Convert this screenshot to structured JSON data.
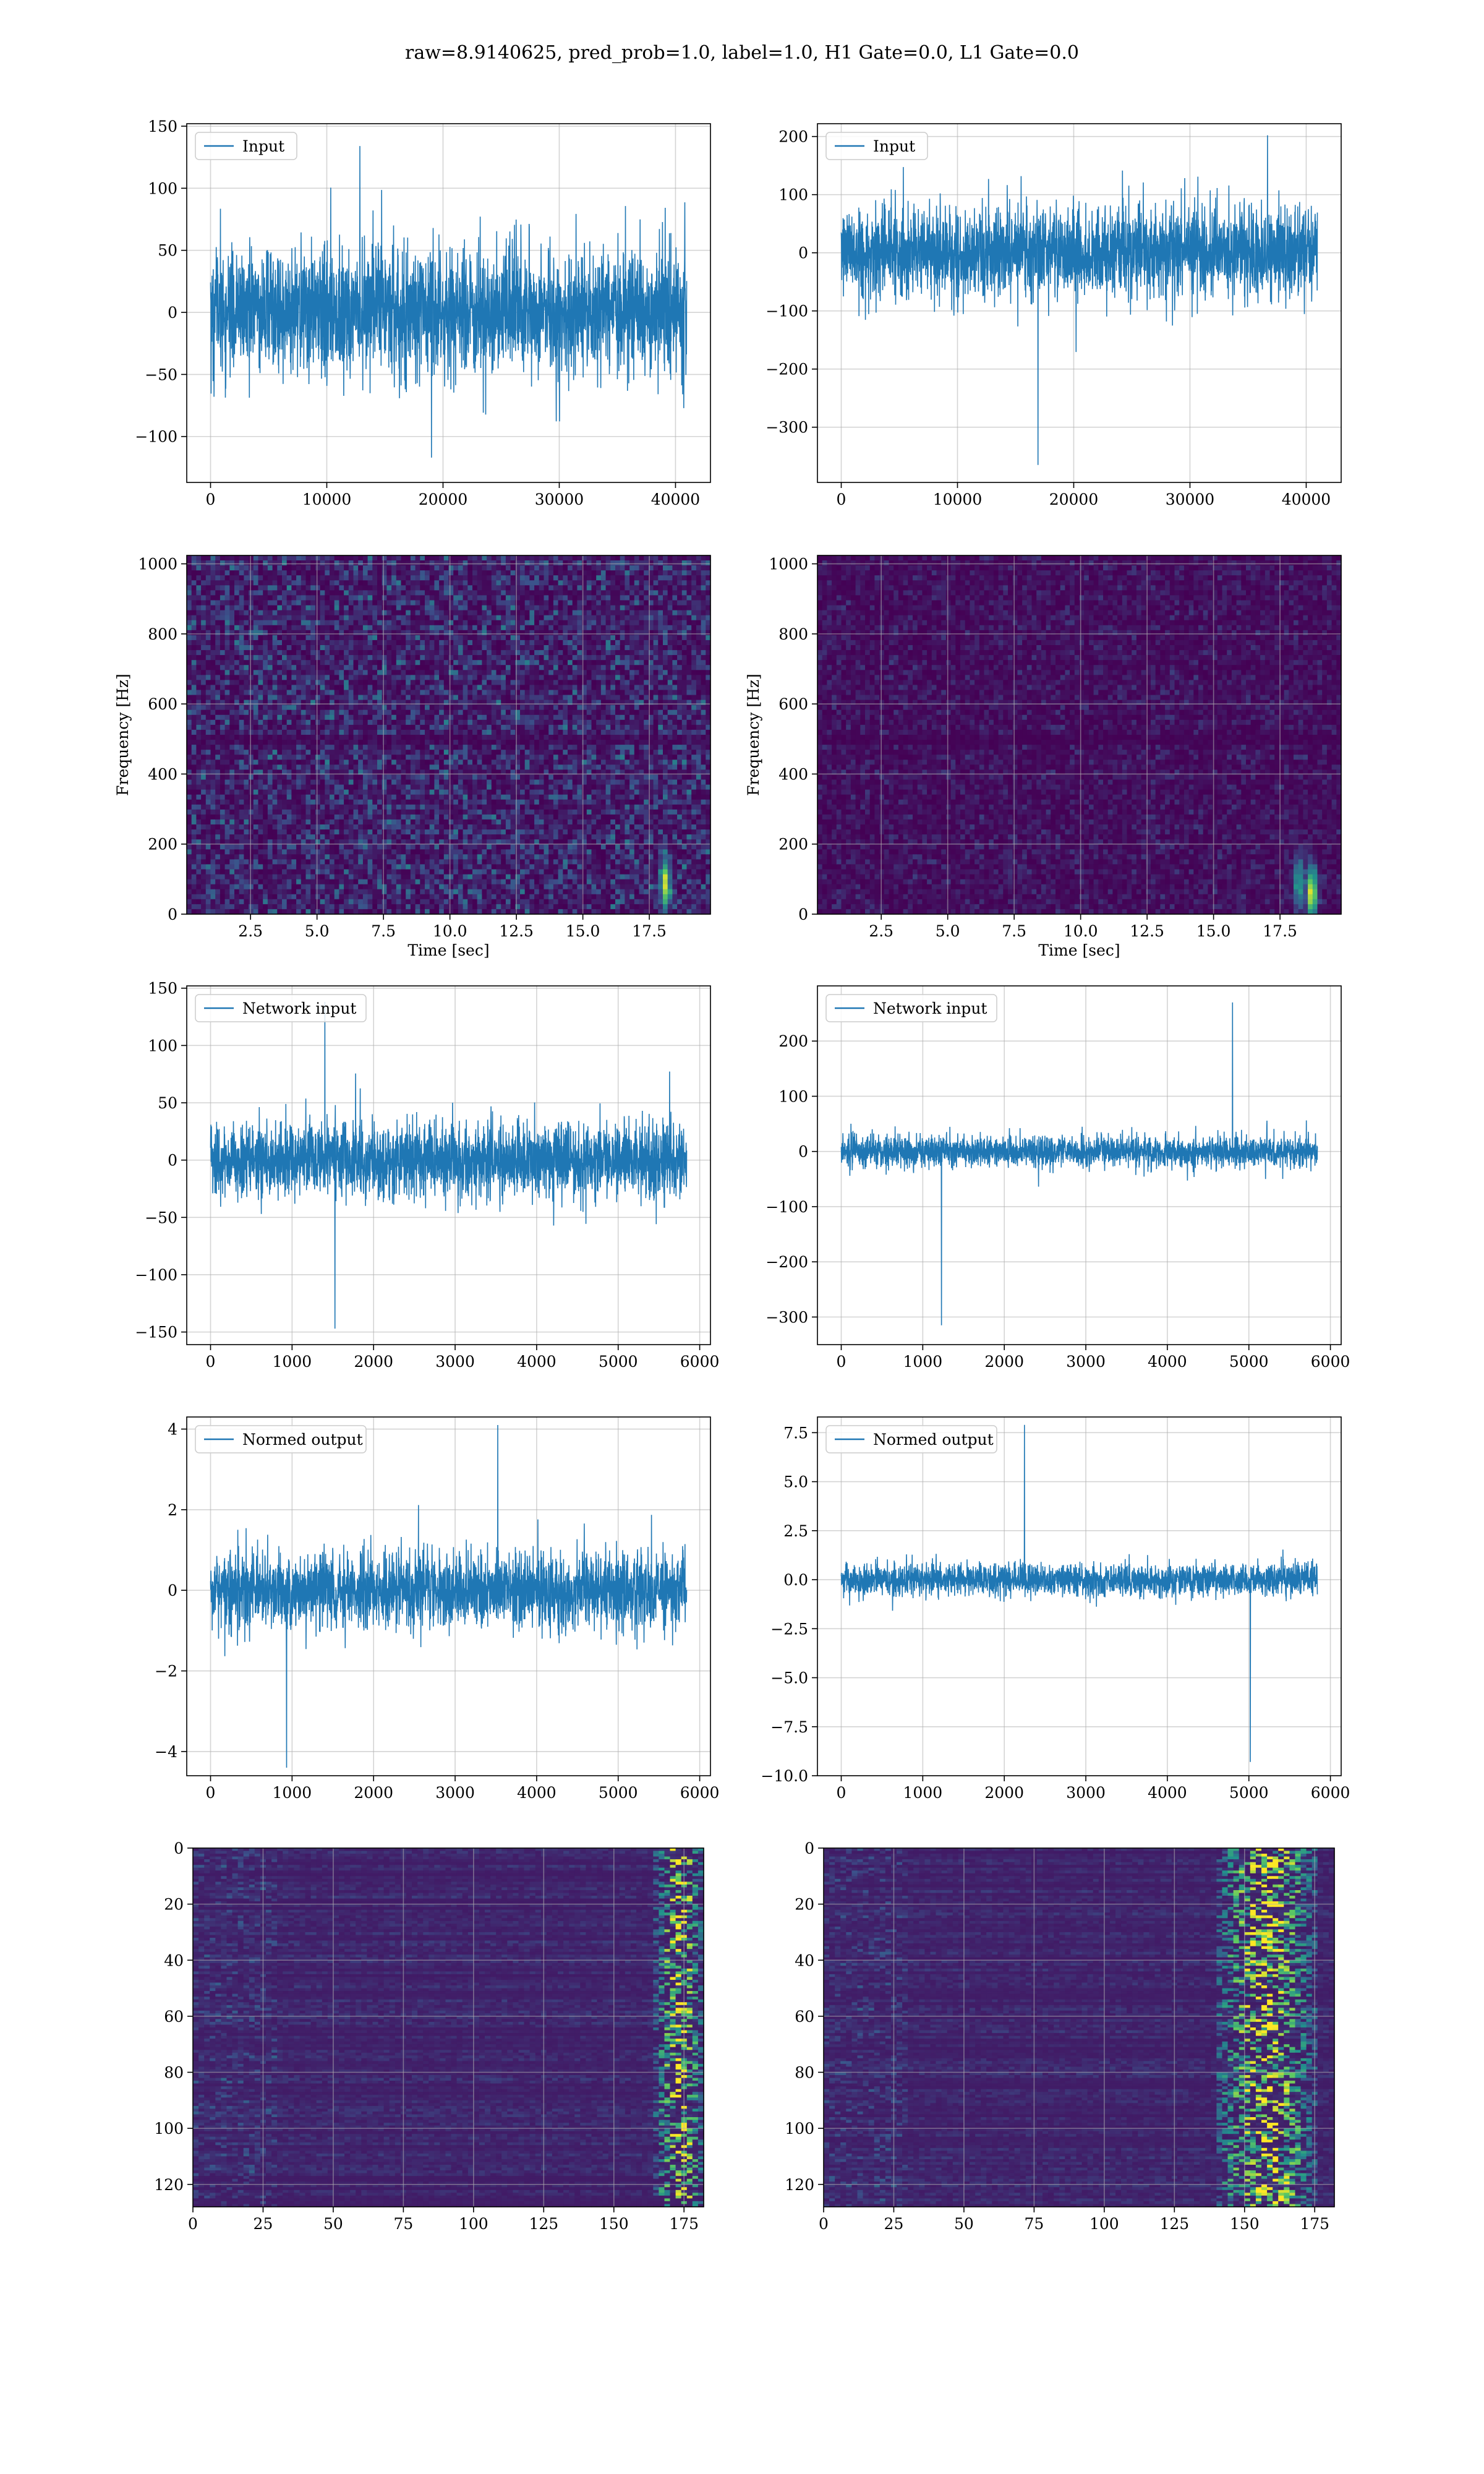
{
  "figure": {
    "title": "raw=8.9140625, pred_prob=1.0, label=1.0, H1 Gate=0.0, L1 Gate=0.0"
  },
  "colors": {
    "series": "#1f77b4",
    "grid": "#b0b0b0",
    "heatmap_low": "#440154",
    "heatmap_mid": "#21918c",
    "heatmap_high": "#fde725"
  },
  "chart_data": [
    {
      "id": "input-h1",
      "type": "line",
      "legend": "Input",
      "legend_position": "upper-left",
      "x_range": [
        0,
        40960
      ],
      "xlim": [
        -2048,
        43008
      ],
      "ylim": [
        -137,
        152
      ],
      "grid": true,
      "xticks": [
        0,
        10000,
        20000,
        30000,
        40000
      ],
      "yticks": [
        -100,
        -50,
        0,
        50,
        100,
        150
      ],
      "envelope": {
        "core": [
          -55,
          55
        ],
        "peaks": [
          -117,
          134
        ]
      }
    },
    {
      "id": "input-l1",
      "type": "line",
      "legend": "Input",
      "legend_position": "upper-left",
      "x_range": [
        0,
        40960
      ],
      "xlim": [
        -2048,
        43008
      ],
      "ylim": [
        -395,
        222
      ],
      "grid": true,
      "xticks": [
        0,
        10000,
        20000,
        30000,
        40000
      ],
      "yticks": [
        -300,
        -200,
        -100,
        0,
        100,
        200
      ],
      "envelope": {
        "core": [
          -85,
          85
        ],
        "peaks": [
          -365,
          202
        ]
      }
    },
    {
      "id": "spectrogram-h1",
      "type": "heatmap",
      "xlabel": "Time [sec]",
      "ylabel": "Frequency [Hz]",
      "xlim": [
        0.1,
        19.8
      ],
      "ylim": [
        0,
        1024
      ],
      "grid": true,
      "xticks": [
        2.5,
        5.0,
        7.5,
        10.0,
        12.5,
        15.0,
        17.5
      ],
      "yticks": [
        0,
        200,
        400,
        600,
        800,
        1000
      ],
      "hotspots": [
        {
          "t": 18.1,
          "f": 90,
          "intensity": 0.8
        }
      ]
    },
    {
      "id": "spectrogram-l1",
      "type": "heatmap",
      "xlabel": "Time [sec]",
      "ylabel": "Frequency [Hz]",
      "xlim": [
        0.1,
        19.8
      ],
      "ylim": [
        0,
        1024
      ],
      "grid": true,
      "xticks": [
        2.5,
        5.0,
        7.5,
        10.0,
        12.5,
        15.0,
        17.5
      ],
      "yticks": [
        0,
        200,
        400,
        600,
        800,
        1000
      ],
      "hotspots": [
        {
          "t": 18.7,
          "f": 60,
          "intensity": 1.0
        },
        {
          "t": 18.2,
          "f": 90,
          "intensity": 0.55
        }
      ]
    },
    {
      "id": "network-input-h1",
      "type": "line",
      "legend": "Network input",
      "legend_position": "upper-left",
      "x_range": [
        0,
        5840
      ],
      "xlim": [
        -292,
        6132
      ],
      "ylim": [
        -161,
        152
      ],
      "grid": true,
      "xticks": [
        0,
        1000,
        2000,
        3000,
        4000,
        5000,
        6000
      ],
      "yticks": [
        -150,
        -100,
        -50,
        0,
        50,
        100,
        150
      ],
      "envelope": {
        "core": [
          -35,
          35
        ],
        "peaks": [
          -147,
          138
        ]
      }
    },
    {
      "id": "network-input-l1",
      "type": "line",
      "legend": "Network input",
      "legend_position": "upper-left",
      "x_range": [
        0,
        5840
      ],
      "xlim": [
        -292,
        6132
      ],
      "ylim": [
        -350,
        300
      ],
      "grid": true,
      "xticks": [
        0,
        1000,
        2000,
        3000,
        4000,
        5000,
        6000
      ],
      "yticks": [
        -300,
        -200,
        -100,
        0,
        100,
        200
      ],
      "envelope": {
        "core": [
          -30,
          30
        ],
        "peaks": [
          -315,
          270
        ]
      }
    },
    {
      "id": "normed-output-h1",
      "type": "line",
      "legend": "Normed output",
      "legend_position": "upper-left",
      "x_range": [
        0,
        5840
      ],
      "xlim": [
        -292,
        6132
      ],
      "ylim": [
        -4.6,
        4.3
      ],
      "grid": true,
      "xticks": [
        0,
        1000,
        2000,
        3000,
        4000,
        5000,
        6000
      ],
      "yticks": [
        -4,
        -2,
        0,
        2,
        4
      ],
      "envelope": {
        "core": [
          -1,
          1
        ],
        "peaks": [
          -4.4,
          4.1
        ]
      }
    },
    {
      "id": "normed-output-l1",
      "type": "line",
      "legend": "Normed output",
      "legend_position": "upper-left",
      "x_range": [
        0,
        5840
      ],
      "xlim": [
        -292,
        6132
      ],
      "ylim": [
        -10.0,
        8.3
      ],
      "grid": true,
      "xticks": [
        0,
        1000,
        2000,
        3000,
        4000,
        5000,
        6000
      ],
      "yticks": [
        -10.0,
        -7.5,
        -5.0,
        -2.5,
        0.0,
        2.5,
        5.0,
        7.5
      ],
      "envelope": {
        "core": [
          -0.9,
          0.9
        ],
        "peaks": [
          -9.3,
          7.9
        ]
      }
    },
    {
      "id": "feature-map-h1",
      "type": "heatmap",
      "xlim": [
        0,
        182
      ],
      "ylim": [
        128,
        0
      ],
      "grid": true,
      "xticks": [
        0,
        25,
        50,
        75,
        100,
        125,
        150,
        175
      ],
      "yticks": [
        0,
        20,
        40,
        60,
        80,
        100,
        120
      ],
      "hot_columns": [
        165,
        182
      ]
    },
    {
      "id": "feature-map-l1",
      "type": "heatmap",
      "xlim": [
        0,
        182
      ],
      "ylim": [
        128,
        0
      ],
      "grid": true,
      "xticks": [
        0,
        25,
        50,
        75,
        100,
        125,
        150,
        175
      ],
      "yticks": [
        0,
        20,
        40,
        60,
        80,
        100,
        120
      ],
      "hot_columns": [
        140,
        175
      ]
    }
  ]
}
